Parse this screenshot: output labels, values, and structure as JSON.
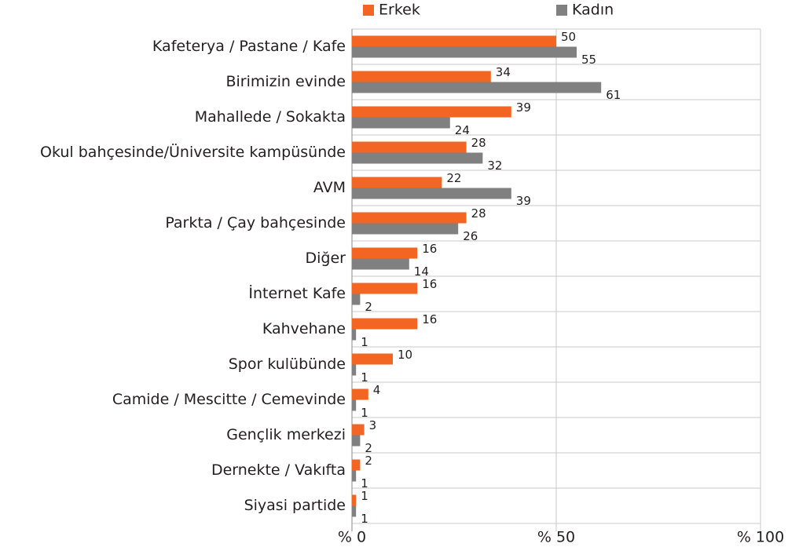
{
  "chart_data": {
    "type": "bar",
    "orientation": "horizontal",
    "categories": [
      "Kafeterya / Pastane / Kafe",
      "Birimizin evinde",
      "Mahallede / Sokakta",
      "Okul bahçesinde/Üniversite kampüsünde",
      "AVM",
      "Parkta / Çay bahçesinde",
      "Diğer",
      "İnternet Kafe",
      "Kahvehane",
      "Spor kulübünde",
      "Camide / Mescitte / Cemevinde",
      "Gençlik merkezi",
      "Dernekte / Vakıfta",
      "Siyasi partide"
    ],
    "series": [
      {
        "name": "Erkek",
        "color": "#f26522",
        "values": [
          50,
          34,
          39,
          28,
          22,
          28,
          16,
          16,
          16,
          10,
          4,
          3,
          2,
          1
        ]
      },
      {
        "name": "Kadın",
        "color": "#808080",
        "values": [
          55,
          61,
          24,
          32,
          39,
          26,
          14,
          2,
          1,
          1,
          1,
          2,
          1,
          1
        ]
      }
    ],
    "xlim": [
      0,
      100
    ],
    "xticks": [
      {
        "value": 0,
        "label": "% 0"
      },
      {
        "value": 50,
        "label": "% 50"
      },
      {
        "value": 100,
        "label": "% 100"
      }
    ],
    "grid": true
  }
}
